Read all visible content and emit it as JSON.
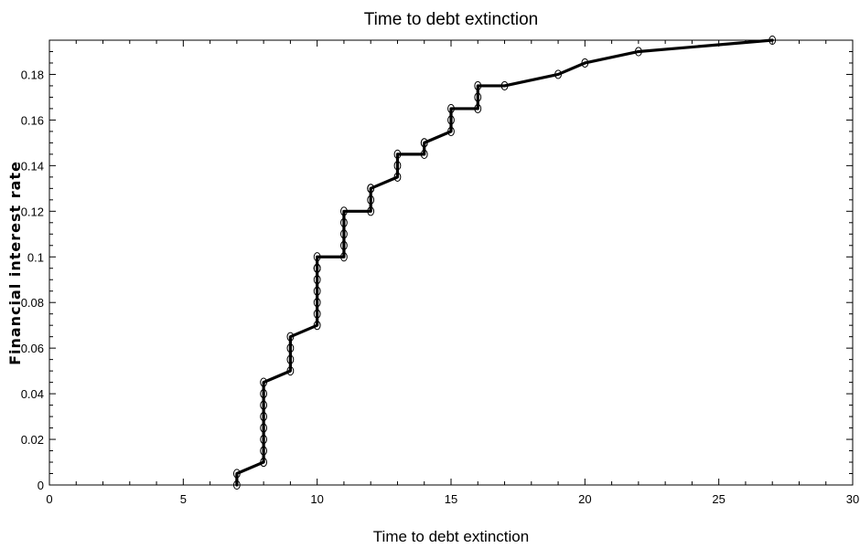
{
  "chart_data": {
    "type": "line",
    "title": "Time to debt extinction",
    "xlabel": "Time to debt extinction",
    "ylabel": "Financial interest rate",
    "xlim": [
      0,
      30
    ],
    "ylim": [
      0,
      0.195
    ],
    "xticks": [
      0,
      5,
      10,
      15,
      20,
      25,
      30
    ],
    "xtick_labels": [
      "0",
      "5",
      "10",
      "15",
      "20",
      "25",
      "30"
    ],
    "yticks": [
      0,
      0.02,
      0.04,
      0.06,
      0.08,
      0.1,
      0.12,
      0.14,
      0.16,
      0.18
    ],
    "ytick_labels": [
      "0",
      "0.02",
      "0.04",
      "0.06",
      "0.08",
      "0.1",
      "0.12",
      "0.14",
      "0.16",
      "0.18"
    ],
    "grid": false,
    "marker": "circle",
    "line_color": "#000000",
    "series": [
      {
        "x": [
          7,
          7,
          8,
          8,
          8,
          8,
          8,
          8,
          8,
          8,
          9,
          9,
          9,
          9,
          10,
          10,
          10,
          10,
          10,
          10,
          10,
          10,
          10,
          11,
          11,
          11,
          11,
          11,
          12,
          12,
          12,
          12,
          13,
          13,
          13,
          14,
          14,
          14,
          15,
          15,
          15,
          16,
          16,
          16,
          17,
          19,
          20,
          22,
          27
        ],
        "y": [
          0,
          0.005,
          0.01,
          0.015,
          0.02,
          0.025,
          0.03,
          0.035,
          0.04,
          0.045,
          0.05,
          0.055,
          0.06,
          0.065,
          0.07,
          0.075,
          0.08,
          0.085,
          0.09,
          0.095,
          0.095,
          0.095,
          0.1,
          0.1,
          0.105,
          0.11,
          0.115,
          0.12,
          0.12,
          0.125,
          0.13,
          0.13,
          0.135,
          0.14,
          0.145,
          0.145,
          0.15,
          0.15,
          0.155,
          0.16,
          0.165,
          0.165,
          0.17,
          0.175,
          0.175,
          0.18,
          0.185,
          0.19,
          0.195
        ]
      }
    ]
  }
}
